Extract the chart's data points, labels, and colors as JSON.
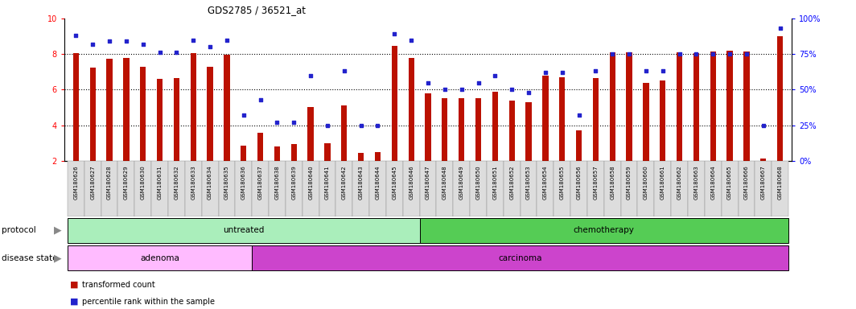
{
  "title": "GDS2785 / 36521_at",
  "samples": [
    "GSM180626",
    "GSM180627",
    "GSM180628",
    "GSM180629",
    "GSM180630",
    "GSM180631",
    "GSM180632",
    "GSM180633",
    "GSM180634",
    "GSM180635",
    "GSM180636",
    "GSM180637",
    "GSM180638",
    "GSM180639",
    "GSM180640",
    "GSM180641",
    "GSM180642",
    "GSM180643",
    "GSM180644",
    "GSM180645",
    "GSM180646",
    "GSM180647",
    "GSM180648",
    "GSM180649",
    "GSM180650",
    "GSM180651",
    "GSM180652",
    "GSM180653",
    "GSM180654",
    "GSM180655",
    "GSM180656",
    "GSM180657",
    "GSM180658",
    "GSM180659",
    "GSM180660",
    "GSM180661",
    "GSM180662",
    "GSM180663",
    "GSM180664",
    "GSM180665",
    "GSM180666",
    "GSM180667",
    "GSM180668"
  ],
  "bar_values": [
    8.05,
    7.25,
    7.75,
    7.8,
    7.3,
    6.6,
    6.65,
    8.05,
    7.3,
    7.95,
    2.85,
    3.55,
    2.8,
    2.95,
    5.0,
    3.0,
    5.1,
    2.45,
    2.5,
    8.45,
    7.8,
    5.8,
    5.5,
    5.5,
    5.5,
    5.9,
    5.4,
    5.3,
    6.8,
    6.7,
    3.7,
    6.65,
    8.1,
    8.1,
    6.4,
    6.5,
    8.1,
    8.05,
    8.15,
    8.2,
    8.15,
    2.1,
    9.0
  ],
  "dot_values": [
    88,
    82,
    84,
    84,
    82,
    76,
    76,
    85,
    80,
    85,
    32,
    43,
    27,
    27,
    60,
    25,
    63,
    25,
    25,
    89,
    85,
    55,
    50,
    50,
    55,
    60,
    50,
    48,
    62,
    62,
    32,
    63,
    75,
    75,
    63,
    63,
    75,
    75,
    75,
    75,
    75,
    25,
    93
  ],
  "ylim_left": [
    2,
    10
  ],
  "ylim_right": [
    0,
    100
  ],
  "yticks_left": [
    2,
    4,
    6,
    8,
    10
  ],
  "yticks_right": [
    0,
    25,
    50,
    75,
    100
  ],
  "bar_color": "#bb1100",
  "dot_color": "#2222cc",
  "background_color": "#ffffff",
  "plot_bg_color": "#ffffff",
  "protocol_untreated_count": 21,
  "protocol_color_untreated": "#aaeebb",
  "protocol_color_chemo": "#55cc55",
  "disease_adenoma_count": 11,
  "disease_color_adenoma": "#ffbbff",
  "disease_color_carcinoma": "#cc44cc",
  "protocol_label_untreated": "untreated",
  "protocol_label_chemo": "chemotherapy",
  "disease_label_adenoma": "adenoma",
  "disease_label_carcinoma": "carcinoma",
  "left_label_protocol": "protocol",
  "left_label_disease": "disease state"
}
